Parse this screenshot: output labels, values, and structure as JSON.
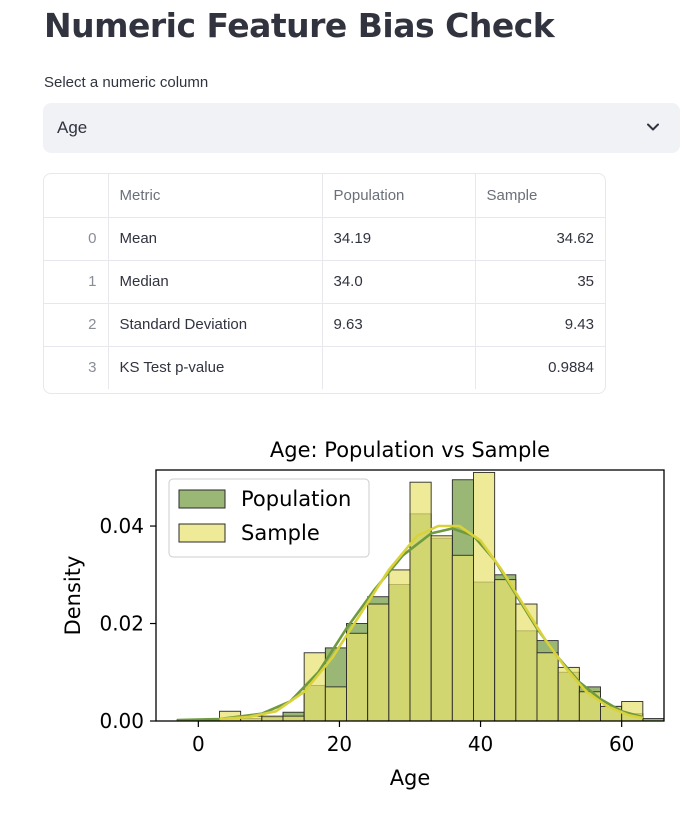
{
  "page": {
    "title": "Numeric Feature Bias Check"
  },
  "select": {
    "label": "Select a numeric column",
    "value": "Age",
    "icon": "chevron-down-icon"
  },
  "table": {
    "columns": [
      "",
      "Metric",
      "Population",
      "Sample"
    ],
    "rows": [
      {
        "index": "0",
        "metric": "Mean",
        "population": "34.19",
        "sample": "34.62"
      },
      {
        "index": "1",
        "metric": "Median",
        "population": "34.0",
        "sample": "35"
      },
      {
        "index": "2",
        "metric": "Standard Deviation",
        "population": "9.63",
        "sample": "9.43"
      },
      {
        "index": "3",
        "metric": "KS Test p-value",
        "population": "",
        "sample": "0.9884"
      }
    ]
  },
  "chart_data": {
    "type": "bar",
    "title": "Age: Population vs Sample",
    "xlabel": "Age",
    "ylabel": "Density",
    "xlim": [
      -6,
      66
    ],
    "ylim": [
      0,
      0.0515
    ],
    "xticks": [
      0,
      20,
      40,
      60
    ],
    "yticks": [
      0.0,
      0.02,
      0.04
    ],
    "ytick_labels": [
      "0.00",
      "0.02",
      "0.04"
    ],
    "legend_position": "upper-left",
    "grid": false,
    "series": [
      {
        "name": "Population",
        "color": "#8aaa5e",
        "edge": "#2a2a2a",
        "bins": [
          [
            -3.0,
            0.0003
          ],
          [
            0.0,
            0.0003
          ],
          [
            3.0,
            0.0005
          ],
          [
            6.0,
            0.0005
          ],
          [
            9.0,
            0.0008
          ],
          [
            12.0,
            0.0018
          ],
          [
            15.0,
            0.0073
          ],
          [
            18.0,
            0.015
          ],
          [
            21.0,
            0.02
          ],
          [
            24.0,
            0.0255
          ],
          [
            27.0,
            0.028
          ],
          [
            30.0,
            0.0425
          ],
          [
            33.0,
            0.0375
          ],
          [
            36.0,
            0.0495
          ],
          [
            39.0,
            0.0285
          ],
          [
            42.0,
            0.03
          ],
          [
            45.0,
            0.0185
          ],
          [
            48.0,
            0.0165
          ],
          [
            51.0,
            0.01
          ],
          [
            54.0,
            0.007
          ],
          [
            57.0,
            0.003
          ],
          [
            60.0,
            0.0015
          ],
          [
            63.0,
            0.0005
          ]
        ],
        "kde": [
          [
            -3,
            0.0002
          ],
          [
            3,
            0.0004
          ],
          [
            9,
            0.0015
          ],
          [
            13,
            0.004
          ],
          [
            17,
            0.01
          ],
          [
            21,
            0.019
          ],
          [
            25,
            0.027
          ],
          [
            29,
            0.034
          ],
          [
            33,
            0.0385
          ],
          [
            36,
            0.0395
          ],
          [
            39,
            0.038
          ],
          [
            42,
            0.033
          ],
          [
            45,
            0.026
          ],
          [
            48,
            0.019
          ],
          [
            51,
            0.013
          ],
          [
            54,
            0.008
          ],
          [
            57,
            0.0045
          ],
          [
            60,
            0.002
          ],
          [
            63,
            0.0008
          ]
        ]
      },
      {
        "name": "Sample",
        "color": "#e7e26f",
        "edge": "#2a2a2a",
        "bins": [
          [
            3.0,
            0.002
          ],
          [
            6.0,
            0.001
          ],
          [
            9.0,
            0.001
          ],
          [
            12.0,
            0.001
          ],
          [
            15.0,
            0.014
          ],
          [
            18.0,
            0.007
          ],
          [
            21.0,
            0.018
          ],
          [
            24.0,
            0.024
          ],
          [
            27.0,
            0.031
          ],
          [
            30.0,
            0.049
          ],
          [
            33.0,
            0.038
          ],
          [
            36.0,
            0.034
          ],
          [
            39.0,
            0.051
          ],
          [
            42.0,
            0.029
          ],
          [
            45.0,
            0.024
          ],
          [
            48.0,
            0.014
          ],
          [
            51.0,
            0.011
          ],
          [
            54.0,
            0.006
          ],
          [
            57.0,
            0.003
          ],
          [
            60.0,
            0.004
          ]
        ],
        "kde": [
          [
            3,
            0.0004
          ],
          [
            7,
            0.0008
          ],
          [
            11,
            0.002
          ],
          [
            15,
            0.006
          ],
          [
            19,
            0.013
          ],
          [
            23,
            0.022
          ],
          [
            27,
            0.031
          ],
          [
            31,
            0.038
          ],
          [
            34,
            0.04
          ],
          [
            37,
            0.04
          ],
          [
            40,
            0.037
          ],
          [
            43,
            0.031
          ],
          [
            46,
            0.024
          ],
          [
            49,
            0.017
          ],
          [
            52,
            0.011
          ],
          [
            55,
            0.006
          ],
          [
            58,
            0.003
          ],
          [
            61,
            0.0012
          ],
          [
            63,
            0.0006
          ]
        ]
      }
    ]
  }
}
